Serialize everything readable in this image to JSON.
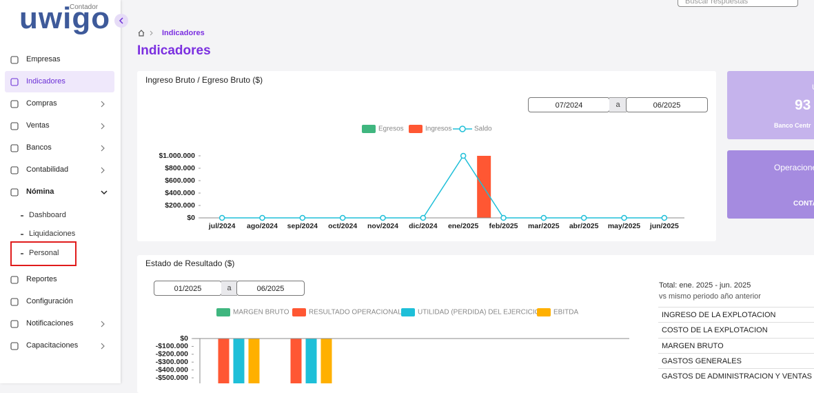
{
  "header": {
    "search_placeholder": "Buscar respuestas"
  },
  "sidebar": {
    "logo": "uwigo",
    "logo_tag": "Contador",
    "items": [
      {
        "label": "Empresas"
      },
      {
        "label": "Indicadores",
        "active": true
      },
      {
        "label": "Compras",
        "arrow": true
      },
      {
        "label": "Ventas",
        "arrow": true
      },
      {
        "label": "Bancos",
        "arrow": true
      },
      {
        "label": "Contabilidad",
        "arrow": true
      },
      {
        "label": "Nómina",
        "open": true
      }
    ],
    "submenu": [
      "Dashboard",
      "Liquidaciones",
      "Personal"
    ],
    "items_after": [
      {
        "label": "Reportes"
      },
      {
        "label": "Configuración"
      },
      {
        "label": "Notificaciones",
        "arrow": true
      },
      {
        "label": "Capacitaciones",
        "arrow": true
      }
    ]
  },
  "breadcrumb": {
    "current": "Indicadores"
  },
  "page_title": "Indicadores",
  "chart_data": [
    {
      "type": "bar",
      "title": "Ingreso Bruto / Egreso Bruto ($)",
      "range": {
        "from": "07/2024",
        "sep": "a",
        "to": "06/2025"
      },
      "categories": [
        "jul/2024",
        "ago/2024",
        "sep/2024",
        "oct/2024",
        "nov/2024",
        "dic/2024",
        "ene/2025",
        "feb/2025",
        "mar/2025",
        "abr/2025",
        "may/2025",
        "jun/2025"
      ],
      "series": [
        {
          "name": "Egresos",
          "color": "#3fb67f",
          "values": [
            0,
            0,
            0,
            0,
            0,
            0,
            0,
            0,
            0,
            0,
            0,
            0
          ]
        },
        {
          "name": "Ingresos",
          "color": "#ff5733",
          "values": [
            0,
            0,
            0,
            0,
            0,
            0,
            1000000,
            0,
            0,
            0,
            0,
            0
          ]
        },
        {
          "name": "Saldo",
          "color": "#1ebfd8",
          "type": "line",
          "values": [
            0,
            0,
            0,
            0,
            0,
            0,
            1000000,
            0,
            0,
            0,
            0,
            0
          ]
        }
      ],
      "ylim": [
        0,
        1000000
      ],
      "yticks": [
        {
          "value": 0,
          "label": "$0"
        },
        {
          "value": 200000,
          "label": "$200.000"
        },
        {
          "value": 400000,
          "label": "$400.000"
        },
        {
          "value": 600000,
          "label": "$600.000"
        },
        {
          "value": 800000,
          "label": "$800.000"
        },
        {
          "value": 1000000,
          "label": "$1.000.000"
        }
      ]
    },
    {
      "type": "bar",
      "title": "Estado de Resultado ($)",
      "range": {
        "from": "01/2025",
        "sep": "a",
        "to": "06/2025"
      },
      "categories": [
        null,
        null,
        null,
        null,
        null,
        null
      ],
      "series": [
        {
          "name": "MARGEN BRUTO",
          "color": "#3fb67f",
          "values": [
            0,
            0,
            0,
            0,
            0,
            0
          ]
        },
        {
          "name": "RESULTADO OPERACIONAL",
          "color": "#ff5733",
          "values": [
            -600000,
            -600000,
            0,
            0,
            0,
            0
          ]
        },
        {
          "name": "UTILIDAD (PERDIDA) DEL EJERCICIO",
          "color": "#1ebfd8",
          "values": [
            -600000,
            -600000,
            0,
            0,
            0,
            0
          ]
        },
        {
          "name": "EBITDA",
          "color": "#ffb000",
          "values": [
            -600000,
            -600000,
            0,
            0,
            0,
            0
          ]
        }
      ],
      "ylim": [
        -600000,
        0
      ],
      "yticks": [
        {
          "value": 0,
          "label": "$0"
        },
        {
          "value": -100000,
          "label": "-$100.000"
        },
        {
          "value": -200000,
          "label": "-$200.000"
        },
        {
          "value": -300000,
          "label": "-$300.000"
        },
        {
          "value": -400000,
          "label": "-$400.000"
        },
        {
          "value": -500000,
          "label": "-$500.000"
        }
      ]
    }
  ],
  "summary_table": {
    "total": "Total: ene. 2025 - jun. 2025",
    "subtitle": "vs mismo periodo año anterior",
    "rows": [
      "INGRESO DE LA EXPLOTACION",
      "COSTO DE LA EXPLOTACION",
      "MARGEN BRUTO",
      "GASTOS GENERALES",
      "GASTOS DE ADMINISTRACION Y VENTAS"
    ]
  },
  "kpi_cards": [
    {
      "lines": [
        "U",
        "93",
        "Banco Centr"
      ]
    },
    {
      "lines": [
        "Operacione",
        "CONTA"
      ]
    }
  ]
}
